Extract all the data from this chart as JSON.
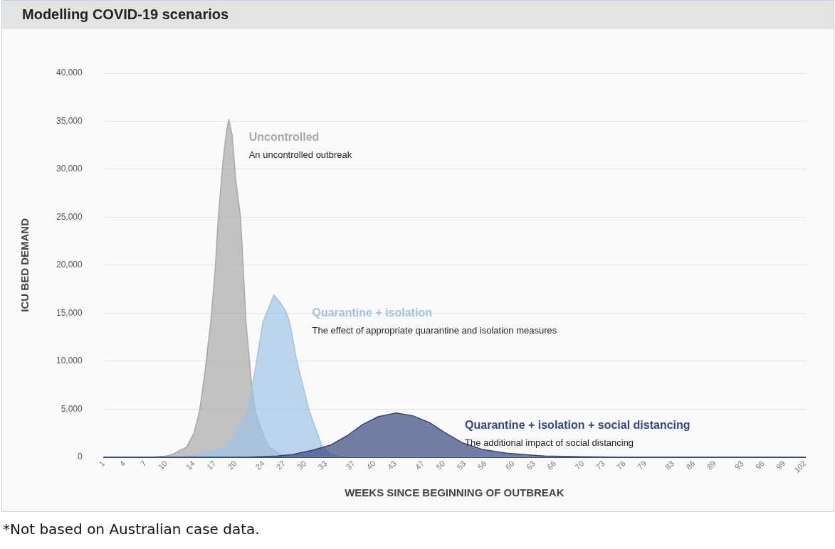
{
  "chart_data": {
    "type": "area",
    "title": "Modelling COVID-19 scenarios",
    "xlabel": "WEEKS SINCE BEGINNING OF OUTBREAK",
    "ylabel": "ICU BED DEMAND",
    "xlim": [
      1,
      102
    ],
    "xticks": [
      1,
      4,
      7,
      10,
      14,
      17,
      20,
      24,
      27,
      30,
      33,
      37,
      40,
      43,
      47,
      50,
      53,
      56,
      60,
      63,
      66,
      70,
      73,
      76,
      79,
      83,
      86,
      89,
      93,
      96,
      99,
      102
    ],
    "ylim": [
      0,
      40000
    ],
    "yticks": [
      {
        "value": 0,
        "label": "0"
      },
      {
        "value": 5000,
        "label": "5,000"
      },
      {
        "value": 10000,
        "label": "10,000"
      },
      {
        "value": 15000,
        "label": "15,000"
      },
      {
        "value": 20000,
        "label": "20,000"
      },
      {
        "value": 25000,
        "label": "25,000"
      },
      {
        "value": 30000,
        "label": "30,000"
      },
      {
        "value": 35000,
        "label": "35,000"
      },
      {
        "value": 40000,
        "label": "40,000"
      }
    ],
    "grid": "y",
    "legend": false,
    "series": [
      {
        "name": "Uncontrolled",
        "color": "#a8a8a8",
        "x": [
          1,
          8,
          10,
          11,
          12,
          12.9,
          14,
          14.8,
          15.6,
          16.4,
          17,
          17.5,
          18.2,
          18.7,
          19,
          19.5,
          20,
          20.7,
          21.5,
          22.3,
          22.8,
          24,
          24.9,
          26.5,
          28,
          30,
          102
        ],
        "values": [
          0,
          0,
          100,
          300,
          700,
          1000,
          2500,
          4800,
          9000,
          14000,
          19000,
          25000,
          31000,
          34000,
          35200,
          33500,
          29000,
          25000,
          14000,
          7500,
          4800,
          2200,
          1000,
          300,
          50,
          0,
          0
        ]
      },
      {
        "name": "Quarantine + isolation",
        "color": "#9fc3e5",
        "x": [
          1,
          12,
          14,
          16,
          18.5,
          20,
          21.7,
          22.8,
          23.9,
          25.5,
          26.5,
          27.2,
          27.8,
          28.8,
          30.6,
          32.5,
          33.8,
          35,
          37,
          102
        ],
        "values": [
          0,
          0,
          200,
          500,
          1000,
          2400,
          4800,
          9000,
          14000,
          16900,
          16000,
          15200,
          14000,
          10000,
          4800,
          1000,
          300,
          50,
          0,
          0
        ]
      },
      {
        "name": "Quarantine + isolation + social distancing",
        "color": "#36457c",
        "x": [
          1,
          22,
          26,
          28.1,
          31,
          33.7,
          36,
          38.3,
          40.5,
          43.1,
          45.5,
          47.9,
          50,
          52.6,
          55.5,
          59,
          64.5,
          70,
          75,
          102
        ],
        "values": [
          0,
          0,
          100,
          250,
          700,
          1260,
          2200,
          3400,
          4200,
          4600,
          4300,
          3600,
          2600,
          1500,
          800,
          400,
          100,
          30,
          0,
          0
        ]
      }
    ],
    "annotations": [
      "An uncontrolled outbreak",
      "The effect of appropriate quarantine and isolation measures",
      "The additional impact of social distancing",
      "*Not based on Australian case data."
    ]
  }
}
